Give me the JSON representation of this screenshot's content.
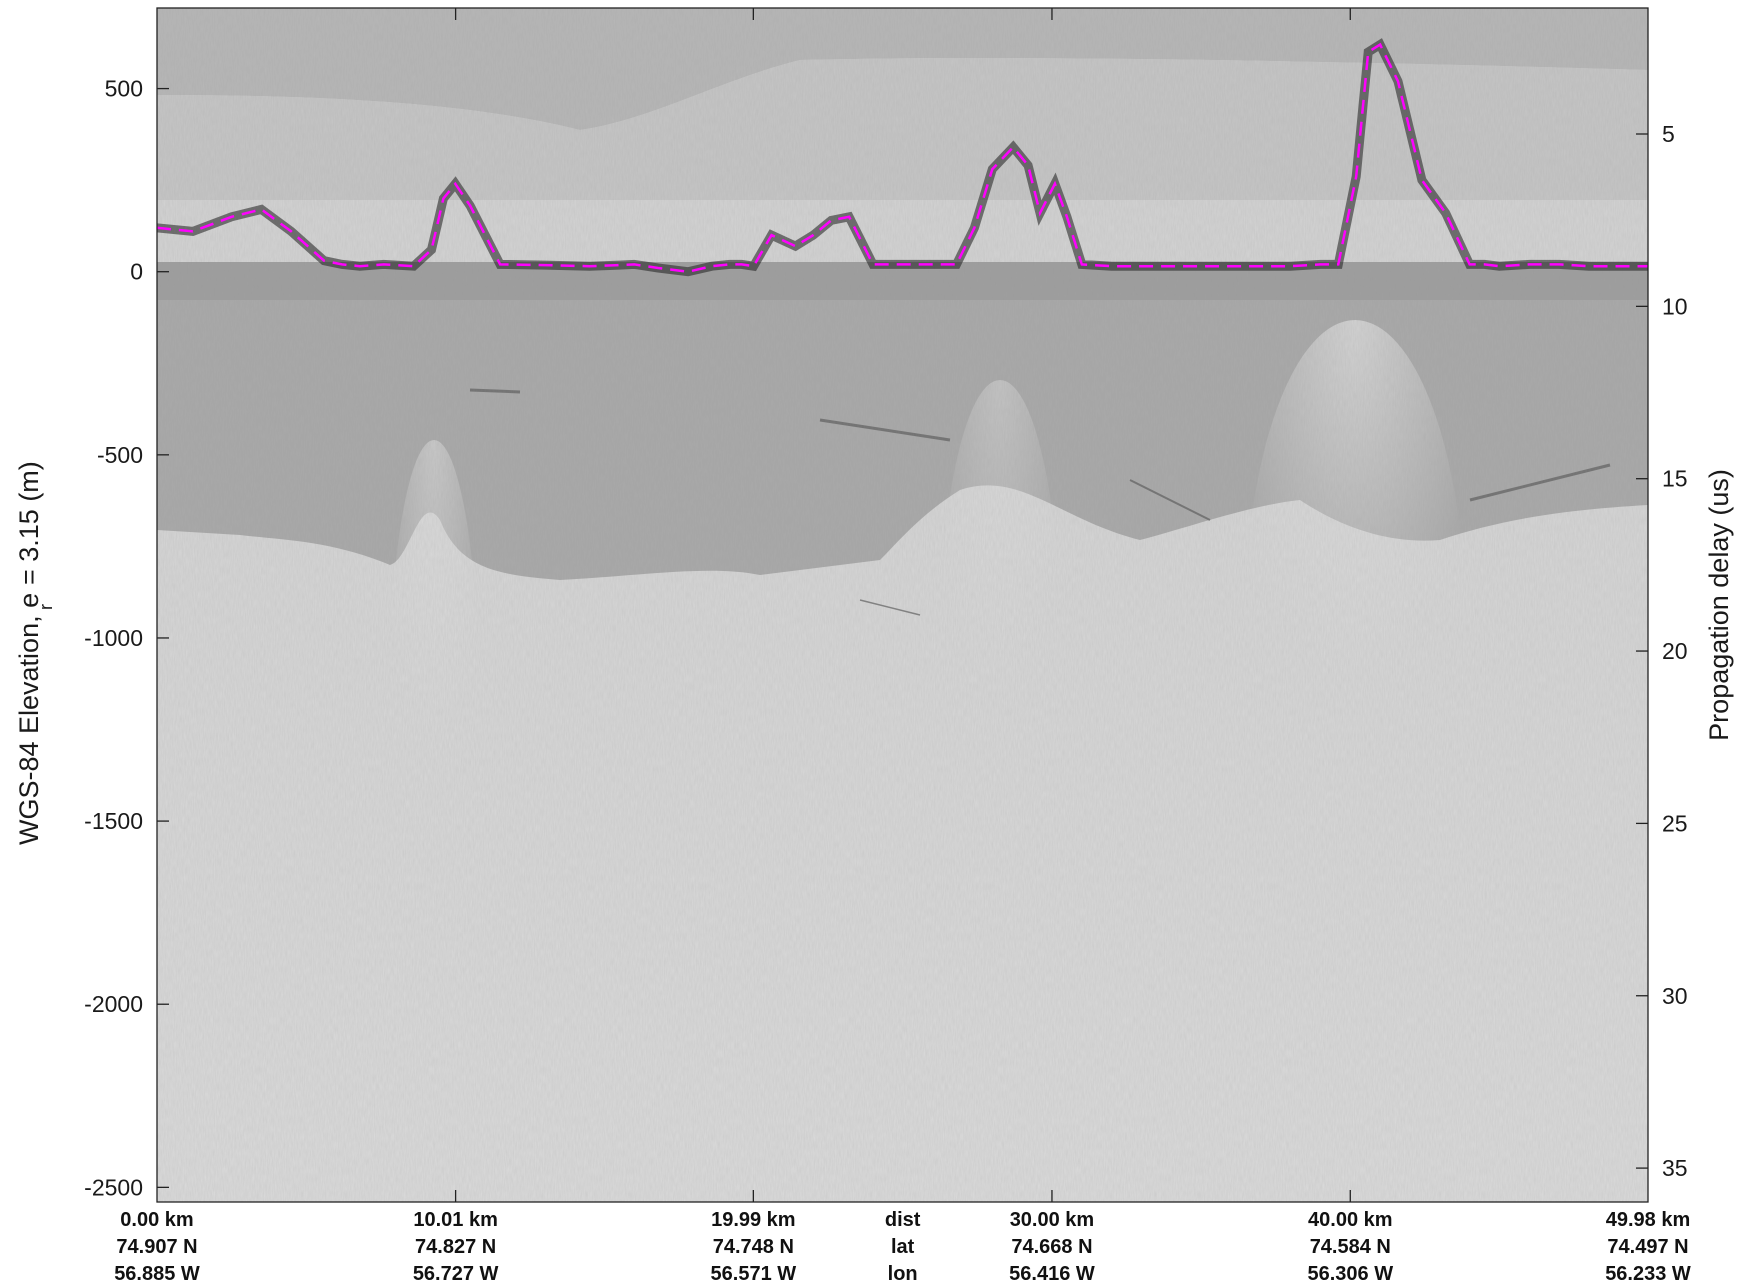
{
  "chart_data": {
    "type": "radargram",
    "y_left_label": "WGS-84 Elevation, e",
    "y_left_label_sub": "r",
    "y_left_label_suffix": "= 3.15 (m)",
    "y_right_label": "Propagation delay (us)",
    "y_left_ticks": [
      "500",
      "0",
      "-500",
      "-1000",
      "-1500",
      "-2000",
      "-2500"
    ],
    "y_left_range": [
      -2540,
      720
    ],
    "y_right_ticks": [
      "5",
      "10",
      "15",
      "20",
      "25",
      "30",
      "35"
    ],
    "x_axis_rows": [
      [
        "0.00 km",
        "10.01 km",
        "19.99 km",
        "30.00 km",
        "40.00 km",
        "49.98 km"
      ],
      [
        "74.907 N",
        "74.827 N",
        "74.748 N",
        "74.668 N",
        "74.584 N",
        "74.497 N"
      ],
      [
        "56.885 W",
        "56.727 W",
        "56.571 W",
        "56.416 W",
        "56.306 W",
        "56.233 W"
      ]
    ],
    "x_row_names": [
      "dist",
      "lat",
      "lon"
    ],
    "x_range_km": [
      0,
      49.98
    ],
    "surface_pick": {
      "color": "#ff00ff",
      "style": "dashed",
      "x_km": [
        0,
        1.2,
        2.5,
        3.5,
        4.5,
        5.6,
        6.2,
        6.8,
        7.6,
        8.6,
        9.2,
        9.6,
        10.0,
        10.5,
        11.5,
        13,
        14.5,
        15.5,
        16,
        16.8,
        17.8,
        18.6,
        19.2,
        19.6,
        20.0,
        20.6,
        21.4,
        22.0,
        22.6,
        23.2,
        24.0,
        26.2,
        26.8,
        27.4,
        28.0,
        28.7,
        29.2,
        29.6,
        30.1,
        30.5,
        31.0,
        32.0,
        34.0,
        35.0,
        36.0,
        38.0,
        39.0,
        39.6,
        40.2,
        40.6,
        41.0,
        41.6,
        42.4,
        43.2,
        44.0,
        44.5,
        45.0,
        46.0,
        47.0,
        48.0,
        49.98
      ],
      "elevation_m": [
        120,
        110,
        150,
        170,
        110,
        30,
        20,
        15,
        20,
        15,
        60,
        200,
        240,
        180,
        20,
        18,
        15,
        18,
        20,
        10,
        0,
        15,
        20,
        20,
        15,
        100,
        70,
        100,
        140,
        150,
        20,
        20,
        20,
        120,
        280,
        340,
        290,
        160,
        240,
        150,
        20,
        15,
        15,
        15,
        15,
        15,
        20,
        20,
        260,
        600,
        620,
        520,
        250,
        160,
        20,
        20,
        15,
        20,
        20,
        15,
        15
      ]
    }
  }
}
